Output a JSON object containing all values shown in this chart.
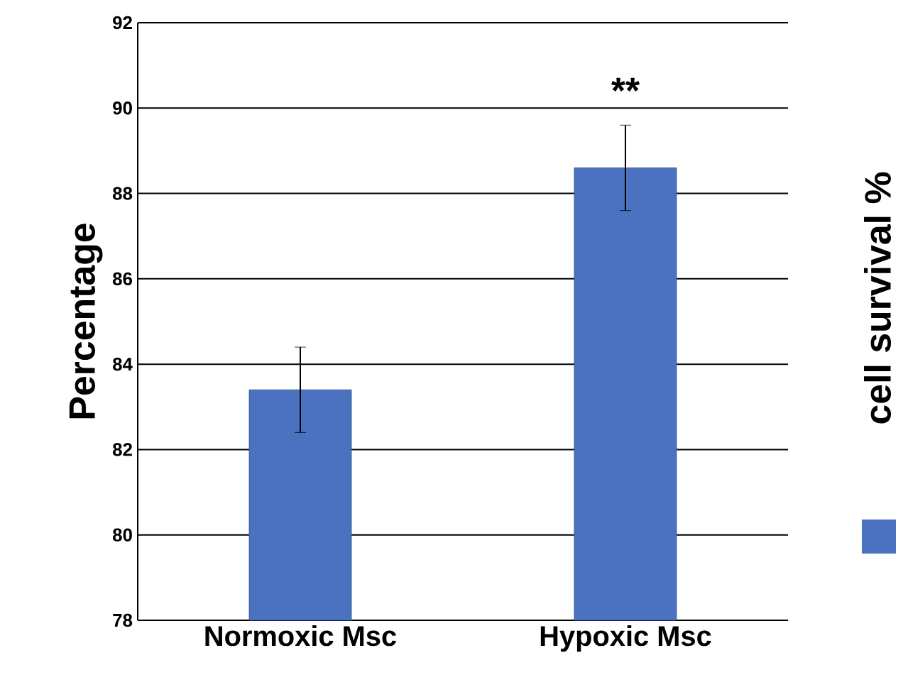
{
  "chart_data": {
    "type": "bar",
    "categories": [
      "Normoxic Msc",
      "Hypoxic Msc"
    ],
    "series": [
      {
        "name": "cell survival %",
        "color": "#4a72c0",
        "values": [
          83.4,
          88.6
        ],
        "errors": [
          1,
          1
        ]
      }
    ],
    "ylabel": "Percentage",
    "ylim": [
      78,
      92
    ],
    "yticks": [
      78,
      80,
      82,
      84,
      86,
      88,
      90,
      92
    ],
    "grid": "y",
    "legend": "right",
    "annotations": [
      "**"
    ]
  }
}
